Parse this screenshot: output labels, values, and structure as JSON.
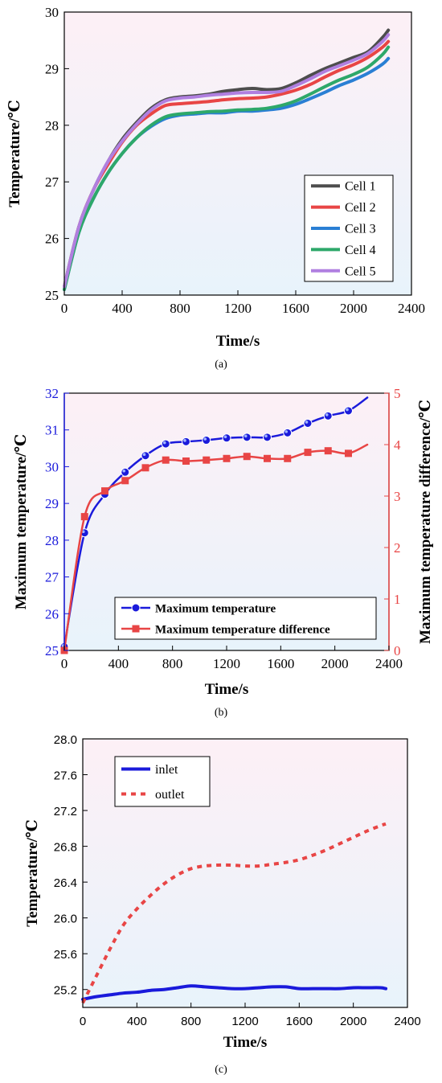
{
  "chart_data": [
    {
      "type": "line",
      "caption": "(a)",
      "xlabel": "Time/s",
      "ylabel": "Temperature/℃",
      "xlim": [
        0,
        2400
      ],
      "ylim": [
        25,
        30
      ],
      "xticks": [
        0,
        400,
        800,
        1200,
        1600,
        2000,
        2400
      ],
      "yticks": [
        25,
        26,
        27,
        28,
        29,
        30
      ],
      "legend_position": "bottom-right",
      "series": [
        {
          "name": "Cell 1",
          "color": "#4d4d4d",
          "x": [
            0,
            100,
            200,
            300,
            400,
            500,
            600,
            700,
            800,
            900,
            1000,
            1100,
            1200,
            1300,
            1400,
            1500,
            1600,
            1700,
            1800,
            1900,
            2000,
            2100,
            2200,
            2240
          ],
          "y": [
            25.15,
            26.2,
            26.85,
            27.35,
            27.75,
            28.05,
            28.3,
            28.45,
            28.5,
            28.52,
            28.55,
            28.6,
            28.63,
            28.65,
            28.63,
            28.65,
            28.75,
            28.88,
            29.0,
            29.1,
            29.2,
            29.3,
            29.55,
            29.68
          ]
        },
        {
          "name": "Cell 2",
          "color": "#e84545",
          "x": [
            0,
            100,
            200,
            300,
            400,
            500,
            600,
            700,
            800,
            900,
            1000,
            1100,
            1200,
            1300,
            1400,
            1500,
            1600,
            1700,
            1800,
            1900,
            2000,
            2100,
            2200,
            2240
          ],
          "y": [
            25.15,
            26.2,
            26.85,
            27.3,
            27.7,
            28.0,
            28.2,
            28.35,
            28.38,
            28.4,
            28.42,
            28.45,
            28.47,
            28.48,
            28.5,
            28.55,
            28.62,
            28.72,
            28.85,
            28.97,
            29.07,
            29.2,
            29.38,
            29.48
          ]
        },
        {
          "name": "Cell 3",
          "color": "#2a7fd4",
          "x": [
            0,
            100,
            200,
            300,
            400,
            500,
            600,
            700,
            800,
            900,
            1000,
            1100,
            1200,
            1300,
            1400,
            1500,
            1600,
            1700,
            1800,
            1900,
            2000,
            2100,
            2200,
            2240
          ],
          "y": [
            25.1,
            26.1,
            26.7,
            27.15,
            27.5,
            27.78,
            27.98,
            28.12,
            28.18,
            28.2,
            28.22,
            28.22,
            28.25,
            28.25,
            28.27,
            28.3,
            28.37,
            28.47,
            28.58,
            28.7,
            28.8,
            28.92,
            29.08,
            29.18
          ]
        },
        {
          "name": "Cell 4",
          "color": "#2ea86a",
          "x": [
            0,
            100,
            200,
            300,
            400,
            500,
            600,
            700,
            800,
            900,
            1000,
            1100,
            1200,
            1300,
            1400,
            1500,
            1600,
            1700,
            1800,
            1900,
            2000,
            2100,
            2200,
            2240
          ],
          "y": [
            25.1,
            26.1,
            26.7,
            27.15,
            27.5,
            27.78,
            28.0,
            28.15,
            28.2,
            28.22,
            28.24,
            28.25,
            28.27,
            28.28,
            28.3,
            28.35,
            28.43,
            28.55,
            28.68,
            28.8,
            28.9,
            29.03,
            29.25,
            29.38
          ]
        },
        {
          "name": "Cell 5",
          "color": "#b07fe0",
          "x": [
            0,
            100,
            200,
            300,
            400,
            500,
            600,
            700,
            800,
            900,
            1000,
            1100,
            1200,
            1300,
            1400,
            1500,
            1600,
            1700,
            1800,
            1900,
            2000,
            2100,
            2200,
            2240
          ],
          "y": [
            25.15,
            26.2,
            26.85,
            27.35,
            27.72,
            28.02,
            28.27,
            28.43,
            28.48,
            28.5,
            28.53,
            28.55,
            28.57,
            28.58,
            28.58,
            28.6,
            28.7,
            28.82,
            28.95,
            29.05,
            29.15,
            29.27,
            29.48,
            29.6
          ]
        }
      ]
    },
    {
      "type": "line",
      "caption": "(b)",
      "xlabel": "Time/s",
      "ylabel": "Maximum temperature/℃",
      "y2label": "Maximum temperature difference/℃",
      "xlim": [
        0,
        2400
      ],
      "ylim": [
        25,
        32
      ],
      "y2lim": [
        0,
        5
      ],
      "xticks": [
        0,
        400,
        800,
        1200,
        1600,
        2000,
        2400
      ],
      "yticks": [
        25,
        26,
        27,
        28,
        29,
        30,
        31,
        32
      ],
      "y2ticks": [
        0,
        1,
        2,
        3,
        4,
        5
      ],
      "legend_position": "bottom-right",
      "series": [
        {
          "name": "Maximum temperature",
          "axis": "left",
          "color": "#1a1adb",
          "marker": "circle",
          "x": [
            0,
            150,
            300,
            450,
            600,
            750,
            900,
            1050,
            1200,
            1350,
            1500,
            1650,
            1800,
            1950,
            2100,
            2240
          ],
          "y": [
            25.1,
            28.2,
            29.25,
            29.85,
            30.3,
            30.62,
            30.68,
            30.72,
            30.78,
            30.8,
            30.8,
            30.92,
            31.18,
            31.38,
            31.52,
            31.88
          ],
          "marked_points": 15
        },
        {
          "name": "Maximum temperature difference",
          "axis": "right",
          "color": "#e84545",
          "marker": "square",
          "x": [
            0,
            150,
            300,
            450,
            600,
            750,
            900,
            1050,
            1200,
            1350,
            1500,
            1650,
            1800,
            1950,
            2100,
            2240
          ],
          "y": [
            0.0,
            2.6,
            3.1,
            3.3,
            3.55,
            3.7,
            3.68,
            3.7,
            3.73,
            3.77,
            3.73,
            3.73,
            3.85,
            3.88,
            3.83,
            4.0
          ],
          "marked_points": 15
        }
      ]
    },
    {
      "type": "line",
      "caption": "(c)",
      "xlabel": "Time/s",
      "ylabel": "Temperature/℃",
      "xlim": [
        0,
        2400
      ],
      "ylim": [
        25.0,
        28.0
      ],
      "xticks": [
        0,
        400,
        800,
        1200,
        1600,
        2000,
        2400
      ],
      "yticks": [
        "25.2",
        "25.6",
        "26.0",
        "26.4",
        "26.8",
        "27.2",
        "27.6",
        "28.0"
      ],
      "legend_position": "top-left",
      "series": [
        {
          "name": "inlet",
          "color": "#1a1adb",
          "style": "solid",
          "x": [
            0,
            100,
            200,
            300,
            400,
            500,
            600,
            700,
            800,
            900,
            1000,
            1100,
            1200,
            1300,
            1400,
            1500,
            1600,
            1700,
            1800,
            1900,
            2000,
            2100,
            2200,
            2240
          ],
          "y": [
            25.09,
            25.12,
            25.14,
            25.16,
            25.17,
            25.19,
            25.2,
            25.22,
            25.24,
            25.23,
            25.22,
            25.21,
            25.21,
            25.22,
            25.23,
            25.23,
            25.21,
            25.21,
            25.21,
            25.21,
            25.22,
            25.22,
            25.22,
            25.21
          ]
        },
        {
          "name": "outlet",
          "color": "#e84545",
          "style": "dotted",
          "x": [
            0,
            100,
            200,
            300,
            400,
            500,
            600,
            700,
            800,
            900,
            1000,
            1100,
            1200,
            1300,
            1400,
            1500,
            1600,
            1700,
            1800,
            1900,
            2000,
            2100,
            2200,
            2240
          ],
          "y": [
            25.05,
            25.35,
            25.65,
            25.92,
            26.1,
            26.25,
            26.38,
            26.48,
            26.55,
            26.58,
            26.59,
            26.59,
            26.58,
            26.58,
            26.6,
            26.62,
            26.65,
            26.7,
            26.76,
            26.83,
            26.9,
            26.97,
            27.03,
            27.05
          ]
        }
      ]
    }
  ]
}
